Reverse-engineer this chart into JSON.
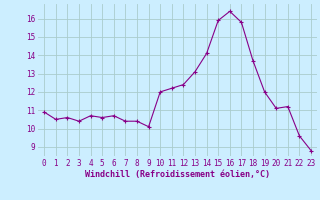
{
  "x": [
    0,
    1,
    2,
    3,
    4,
    5,
    6,
    7,
    8,
    9,
    10,
    11,
    12,
    13,
    14,
    15,
    16,
    17,
    18,
    19,
    20,
    21,
    22,
    23
  ],
  "y": [
    10.9,
    10.5,
    10.6,
    10.4,
    10.7,
    10.6,
    10.7,
    10.4,
    10.4,
    10.1,
    12.0,
    12.2,
    12.4,
    13.1,
    14.1,
    15.9,
    16.4,
    15.8,
    13.7,
    12.0,
    11.1,
    11.2,
    9.6,
    8.8
  ],
  "line_color": "#880088",
  "marker": "+",
  "marker_size": 3,
  "marker_linewidth": 0.8,
  "line_width": 0.8,
  "bg_color": "#cceeff",
  "grid_color": "#aacccc",
  "xlabel": "Windchill (Refroidissement éolien,°C)",
  "xlabel_color": "#880088",
  "tick_color": "#880088",
  "label_fontsize": 5.5,
  "xlabel_fontsize": 6.0,
  "ylim": [
    8.5,
    16.8
  ],
  "yticks": [
    9,
    10,
    11,
    12,
    13,
    14,
    15,
    16
  ],
  "xlim": [
    -0.5,
    23.5
  ],
  "xticks": [
    0,
    1,
    2,
    3,
    4,
    5,
    6,
    7,
    8,
    9,
    10,
    11,
    12,
    13,
    14,
    15,
    16,
    17,
    18,
    19,
    20,
    21,
    22,
    23
  ]
}
